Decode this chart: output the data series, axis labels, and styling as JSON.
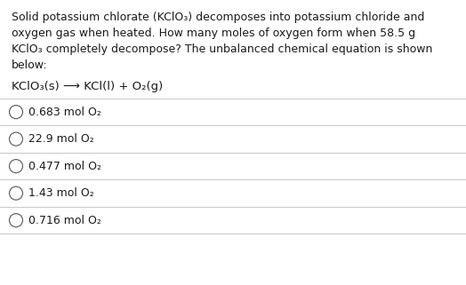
{
  "background_color": "#ffffff",
  "para_line1": "Solid potassium chlorate (KClO₃) decomposes into potassium chloride and",
  "para_line2": "oxygen gas when heated. How many moles of oxygen form when 58.5 g",
  "para_line3": "KClO₃ completely decompose? The unbalanced chemical equation is shown",
  "para_line4": "below:",
  "equation": "KClO₃(s) ⟶ KCl(l) + O₂(g)",
  "choices": [
    "0.683 mol O₂",
    "22.9 mol O₂",
    "0.477 mol O₂",
    "1.43 mol O₂",
    "0.716 mol O₂"
  ],
  "text_color": "#1a1a1a",
  "line_color": "#c8c8c8",
  "circle_color": "#666666",
  "font_size_para": 9.0,
  "font_size_eq": 9.5,
  "font_size_choices": 9.0,
  "fig_width": 5.24,
  "fig_height": 3.21,
  "dpi": 100
}
